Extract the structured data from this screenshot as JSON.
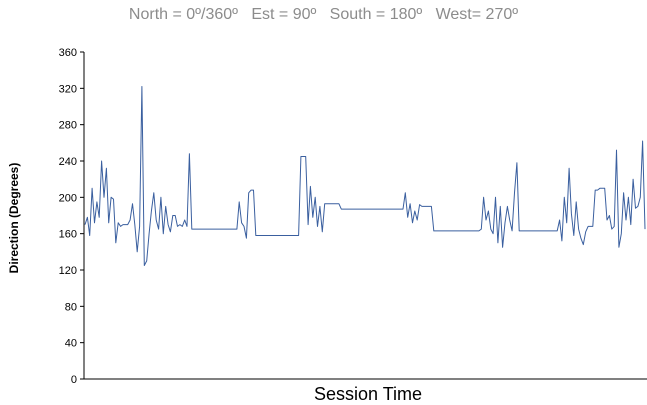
{
  "chart_data": {
    "type": "line",
    "title": "",
    "subtitle": "North = 0º/360º   Est = 90º   South = 180º   West= 270º",
    "xlabel": "Session Time",
    "ylabel": "Direction (Degrees)",
    "ylim": [
      0,
      360
    ],
    "yticks": [
      "0",
      "40",
      "80",
      "120",
      "160",
      "200",
      "240",
      "280",
      "320",
      "360"
    ],
    "grid": false,
    "line_color": "#3a5f9f",
    "series": [
      {
        "values": [
          170,
          178,
          158,
          210,
          172,
          195,
          178,
          240,
          200,
          232,
          172,
          200,
          198,
          150,
          172,
          168,
          170,
          170,
          170,
          175,
          193,
          170,
          140,
          168,
          322,
          125,
          130,
          160,
          185,
          205,
          175,
          165,
          200,
          160,
          190,
          170,
          162,
          180,
          180,
          168,
          170,
          168,
          175,
          168,
          248,
          165,
          165,
          165,
          165,
          165,
          165,
          165,
          165,
          165,
          165,
          165,
          165,
          165,
          165,
          165,
          165,
          165,
          165,
          165,
          165,
          195,
          172,
          168,
          155,
          205,
          208,
          208,
          158,
          158,
          158,
          158,
          158,
          158,
          158,
          158,
          158,
          158,
          158,
          158,
          158,
          158,
          158,
          158,
          158,
          158,
          158,
          245,
          245,
          245,
          170,
          212,
          178,
          200,
          168,
          190,
          162,
          193,
          193,
          193,
          193,
          193,
          193,
          193,
          187,
          187,
          187,
          187,
          187,
          187,
          187,
          187,
          187,
          187,
          187,
          187,
          187,
          187,
          187,
          187,
          187,
          187,
          187,
          187,
          187,
          187,
          187,
          187,
          187,
          187,
          187,
          205,
          178,
          193,
          172,
          185,
          175,
          192,
          190,
          190,
          190,
          190,
          190,
          163,
          163,
          163,
          163,
          163,
          163,
          163,
          163,
          163,
          163,
          163,
          163,
          163,
          163,
          163,
          163,
          163,
          163,
          163,
          163,
          165,
          200,
          175,
          185,
          165,
          160,
          200,
          150,
          190,
          145,
          172,
          190,
          175,
          163,
          205,
          238,
          163,
          163,
          163,
          163,
          163,
          163,
          163,
          163,
          163,
          163,
          163,
          163,
          163,
          163,
          163,
          163,
          163,
          175,
          152,
          200,
          172,
          232,
          182,
          158,
          195,
          165,
          155,
          148,
          162,
          168,
          168,
          168,
          208,
          208,
          210,
          210,
          210,
          175,
          180,
          165,
          168,
          252,
          145,
          160,
          205,
          175,
          200,
          170,
          220,
          188,
          190,
          200,
          262,
          165
        ]
      }
    ]
  }
}
